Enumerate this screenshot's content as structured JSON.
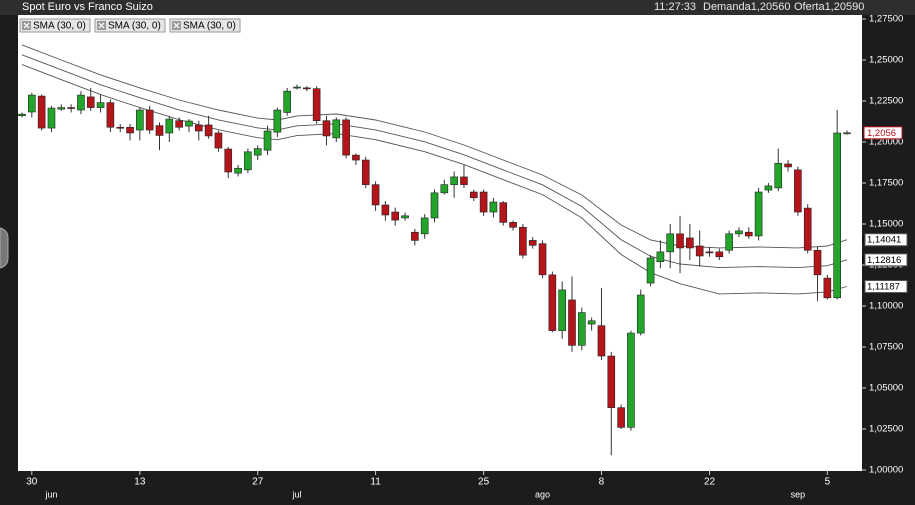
{
  "chart_data": {
    "type": "candlestick",
    "title": "Spot Euro vs Franco Suizo",
    "status": [
      "11:27:33",
      "Demanda1,20560",
      "Oferta1,20590"
    ],
    "categories": [
      null,
      "30",
      null,
      null,
      null,
      null,
      null,
      null,
      null,
      null,
      null,
      null,
      "13",
      null,
      null,
      null,
      null,
      null,
      null,
      null,
      null,
      null,
      null,
      null,
      "27",
      null,
      null,
      null,
      null,
      null,
      null,
      null,
      null,
      null,
      null,
      null,
      "11",
      null,
      null,
      null,
      null,
      null,
      null,
      null,
      null,
      null,
      null,
      "25",
      null,
      null,
      null,
      null,
      null,
      null,
      null,
      null,
      null,
      null,
      null,
      "8",
      null,
      null,
      null,
      null,
      null,
      null,
      null,
      null,
      null,
      null,
      "22",
      null,
      null,
      null,
      null,
      null,
      null,
      null,
      null,
      null,
      null,
      null,
      "5",
      null,
      null
    ],
    "months": [
      null,
      null,
      null,
      "jun",
      null,
      null,
      null,
      null,
      null,
      null,
      null,
      null,
      null,
      null,
      null,
      null,
      null,
      null,
      null,
      null,
      null,
      null,
      null,
      null,
      null,
      null,
      null,
      null,
      "jul",
      null,
      null,
      null,
      null,
      null,
      null,
      null,
      null,
      null,
      null,
      null,
      null,
      null,
      null,
      null,
      null,
      null,
      null,
      null,
      null,
      null,
      null,
      null,
      null,
      "ago",
      null,
      null,
      null,
      null,
      null,
      null,
      null,
      null,
      null,
      null,
      null,
      null,
      null,
      null,
      null,
      null,
      null,
      null,
      null,
      null,
      null,
      null,
      null,
      null,
      null,
      "sep",
      null,
      null,
      null,
      null,
      null
    ],
    "open": [
      1.216,
      1.2183,
      1.228,
      1.2085,
      1.22,
      1.221,
      1.2195,
      1.2275,
      1.221,
      1.224,
      1.209,
      1.209,
      1.2073,
      1.2195,
      1.21,
      1.2055,
      1.213,
      1.2097,
      1.2104,
      1.2104,
      1.2055,
      1.1957,
      1.181,
      1.183,
      1.192,
      1.195,
      1.206,
      1.218,
      1.233,
      1.233,
      1.2325,
      1.213,
      1.2025,
      1.2135,
      1.192,
      1.189,
      1.174,
      1.1616,
      1.1573,
      1.1537,
      1.145,
      1.144,
      1.1537,
      1.169,
      1.174,
      1.1787,
      1.1695,
      1.1695,
      1.1573,
      1.163,
      1.151,
      1.148,
      1.14,
      1.138,
      1.119,
      1.085,
      1.1037,
      1.076,
      1.089,
      1.088,
      1.0695,
      1.038,
      1.026,
      1.0835,
      1.114,
      1.127,
      1.133,
      1.144,
      1.1415,
      1.1366,
      1.133,
      1.133,
      1.134,
      1.144,
      1.145,
      1.1427,
      1.1707,
      1.172,
      1.1866,
      1.183,
      1.1597,
      1.134,
      1.117,
      1.105,
      1.2055
    ],
    "high": [
      1.218,
      1.23,
      1.229,
      1.222,
      1.223,
      1.223,
      1.231,
      1.233,
      1.229,
      1.226,
      1.211,
      1.211,
      1.221,
      1.222,
      1.212,
      1.216,
      1.215,
      1.214,
      1.213,
      1.216,
      1.207,
      1.197,
      1.186,
      1.196,
      1.198,
      1.21,
      1.221,
      1.233,
      1.235,
      1.234,
      1.234,
      1.216,
      1.215,
      1.215,
      1.193,
      1.191,
      1.176,
      1.164,
      1.16,
      1.157,
      1.147,
      1.156,
      1.171,
      1.177,
      1.182,
      1.186,
      1.171,
      1.171,
      1.166,
      1.164,
      1.152,
      1.15,
      1.142,
      1.14,
      1.121,
      1.115,
      1.118,
      1.099,
      1.093,
      1.111,
      1.072,
      1.04,
      1.085,
      1.11,
      1.131,
      1.14,
      1.15,
      1.155,
      1.15,
      1.146,
      1.136,
      1.135,
      1.146,
      1.148,
      1.148,
      1.172,
      1.175,
      1.196,
      1.189,
      1.185,
      1.162,
      1.136,
      1.119,
      1.2195,
      1.207
    ],
    "low": [
      1.215,
      1.215,
      1.207,
      1.206,
      1.219,
      1.218,
      1.217,
      1.219,
      1.218,
      1.206,
      1.206,
      1.201,
      1.201,
      1.205,
      1.195,
      1.2,
      1.207,
      1.206,
      1.201,
      1.202,
      1.194,
      1.178,
      1.179,
      1.181,
      1.189,
      1.192,
      1.203,
      1.216,
      1.232,
      1.231,
      1.211,
      1.198,
      1.2,
      1.19,
      1.186,
      1.172,
      1.158,
      1.152,
      1.149,
      1.152,
      1.137,
      1.141,
      1.151,
      1.168,
      1.166,
      1.172,
      1.164,
      1.155,
      1.154,
      1.149,
      1.146,
      1.129,
      1.135,
      1.117,
      1.084,
      1.08,
      1.072,
      1.073,
      1.085,
      1.067,
      1.009,
      1.025,
      1.024,
      1.082,
      1.112,
      1.123,
      1.123,
      1.12,
      1.128,
      1.124,
      1.13,
      1.128,
      1.132,
      1.142,
      1.141,
      1.14,
      1.169,
      1.17,
      1.182,
      1.155,
      1.132,
      1.103,
      1.104,
      1.104,
      1.2045
    ],
    "close": [
      1.217,
      1.2286,
      1.2085,
      1.2207,
      1.221,
      1.2205,
      1.2286,
      1.221,
      1.224,
      1.209,
      1.2085,
      1.2055,
      1.2195,
      1.2073,
      1.204,
      1.214,
      1.209,
      1.2128,
      1.2067,
      1.2037,
      1.1963,
      1.1817,
      1.184,
      1.194,
      1.196,
      1.2067,
      1.2195,
      1.231,
      1.2335,
      1.2325,
      1.213,
      1.2037,
      1.2135,
      1.192,
      1.189,
      1.174,
      1.1616,
      1.1555,
      1.1524,
      1.155,
      1.14,
      1.1537,
      1.169,
      1.174,
      1.1787,
      1.174,
      1.166,
      1.1573,
      1.1634,
      1.151,
      1.148,
      1.131,
      1.137,
      1.119,
      1.085,
      1.1098,
      1.076,
      1.096,
      1.091,
      1.0695,
      1.038,
      1.026,
      1.0835,
      1.1067,
      1.1293,
      1.133,
      1.144,
      1.1354,
      1.1354,
      1.1305,
      1.1324,
      1.13,
      1.144,
      1.1458,
      1.1427,
      1.1695,
      1.1732,
      1.187,
      1.1848,
      1.1573,
      1.134,
      1.119,
      1.105,
      1.2055,
      1.2056
    ],
    "up_color": "#22a52a",
    "down_color": "#b3151b",
    "current": {
      "value": 1.2056,
      "label": "1,2056"
    },
    "overlays": [
      {
        "name": "SMA (30, 0)",
        "color": "#555555",
        "x": [
          0,
          4,
          8,
          12,
          16,
          20,
          24,
          26,
          28,
          32,
          36,
          41,
          45,
          49,
          53,
          57,
          61,
          64,
          67,
          71,
          75,
          79,
          82,
          84
        ],
        "values": [
          1.2592,
          1.25,
          1.2409,
          1.233,
          1.2256,
          1.2195,
          1.2146,
          1.2134,
          1.2159,
          1.2171,
          1.2134,
          1.2061,
          1.1982,
          1.189,
          1.1799,
          1.1677,
          1.1494,
          1.1403,
          1.1366,
          1.1354,
          1.136,
          1.1354,
          1.1366,
          1.14041
        ],
        "current": {
          "value": 1.14041,
          "label": "1,14041"
        }
      },
      {
        "name": "SMA (30, 0)",
        "color": "#555555",
        "x": [
          0,
          4,
          8,
          12,
          16,
          20,
          24,
          26,
          28,
          32,
          36,
          41,
          45,
          49,
          53,
          57,
          61,
          64,
          67,
          71,
          75,
          79,
          82,
          84
        ],
        "values": [
          1.2532,
          1.244,
          1.2349,
          1.227,
          1.2196,
          1.2135,
          1.2086,
          1.2074,
          1.2099,
          1.2111,
          1.2074,
          1.2001,
          1.1922,
          1.183,
          1.1739,
          1.1607,
          1.1404,
          1.1303,
          1.1256,
          1.1234,
          1.124,
          1.1234,
          1.1246,
          1.12816
        ],
        "current": {
          "value": 1.12816,
          "label": "1,12816"
        }
      },
      {
        "name": "SMA (30, 0)",
        "color": "#555555",
        "x": [
          0,
          4,
          8,
          12,
          16,
          20,
          24,
          26,
          28,
          32,
          36,
          41,
          45,
          49,
          53,
          57,
          61,
          64,
          67,
          71,
          75,
          79,
          82,
          84
        ],
        "values": [
          1.2472,
          1.238,
          1.2289,
          1.221,
          1.2136,
          1.2075,
          1.2026,
          1.2014,
          1.2039,
          1.2051,
          1.2014,
          1.1941,
          1.1862,
          1.177,
          1.1679,
          1.1537,
          1.1314,
          1.1203,
          1.1136,
          1.1074,
          1.108,
          1.1074,
          1.1086,
          1.11187
        ],
        "current": {
          "value": 1.11187,
          "label": "1,11187"
        }
      }
    ],
    "ylim": [
      1.0,
      1.275
    ],
    "yticks": [
      {
        "value": 1.0,
        "label": "1,00000"
      },
      {
        "value": 1.025,
        "label": "1,02500"
      },
      {
        "value": 1.05,
        "label": "1,05000"
      },
      {
        "value": 1.075,
        "label": "1,07500"
      },
      {
        "value": 1.1,
        "label": "1,10000"
      },
      {
        "value": 1.125,
        "label": "1,12500"
      },
      {
        "value": 1.15,
        "label": "1,15000"
      },
      {
        "value": 1.175,
        "label": "1,17500"
      },
      {
        "value": 1.2,
        "label": "1,20000"
      },
      {
        "value": 1.225,
        "label": "1,22500"
      },
      {
        "value": 1.25,
        "label": "1,25000"
      },
      {
        "value": 1.275,
        "label": "1,27500"
      }
    ],
    "grid": false
  }
}
